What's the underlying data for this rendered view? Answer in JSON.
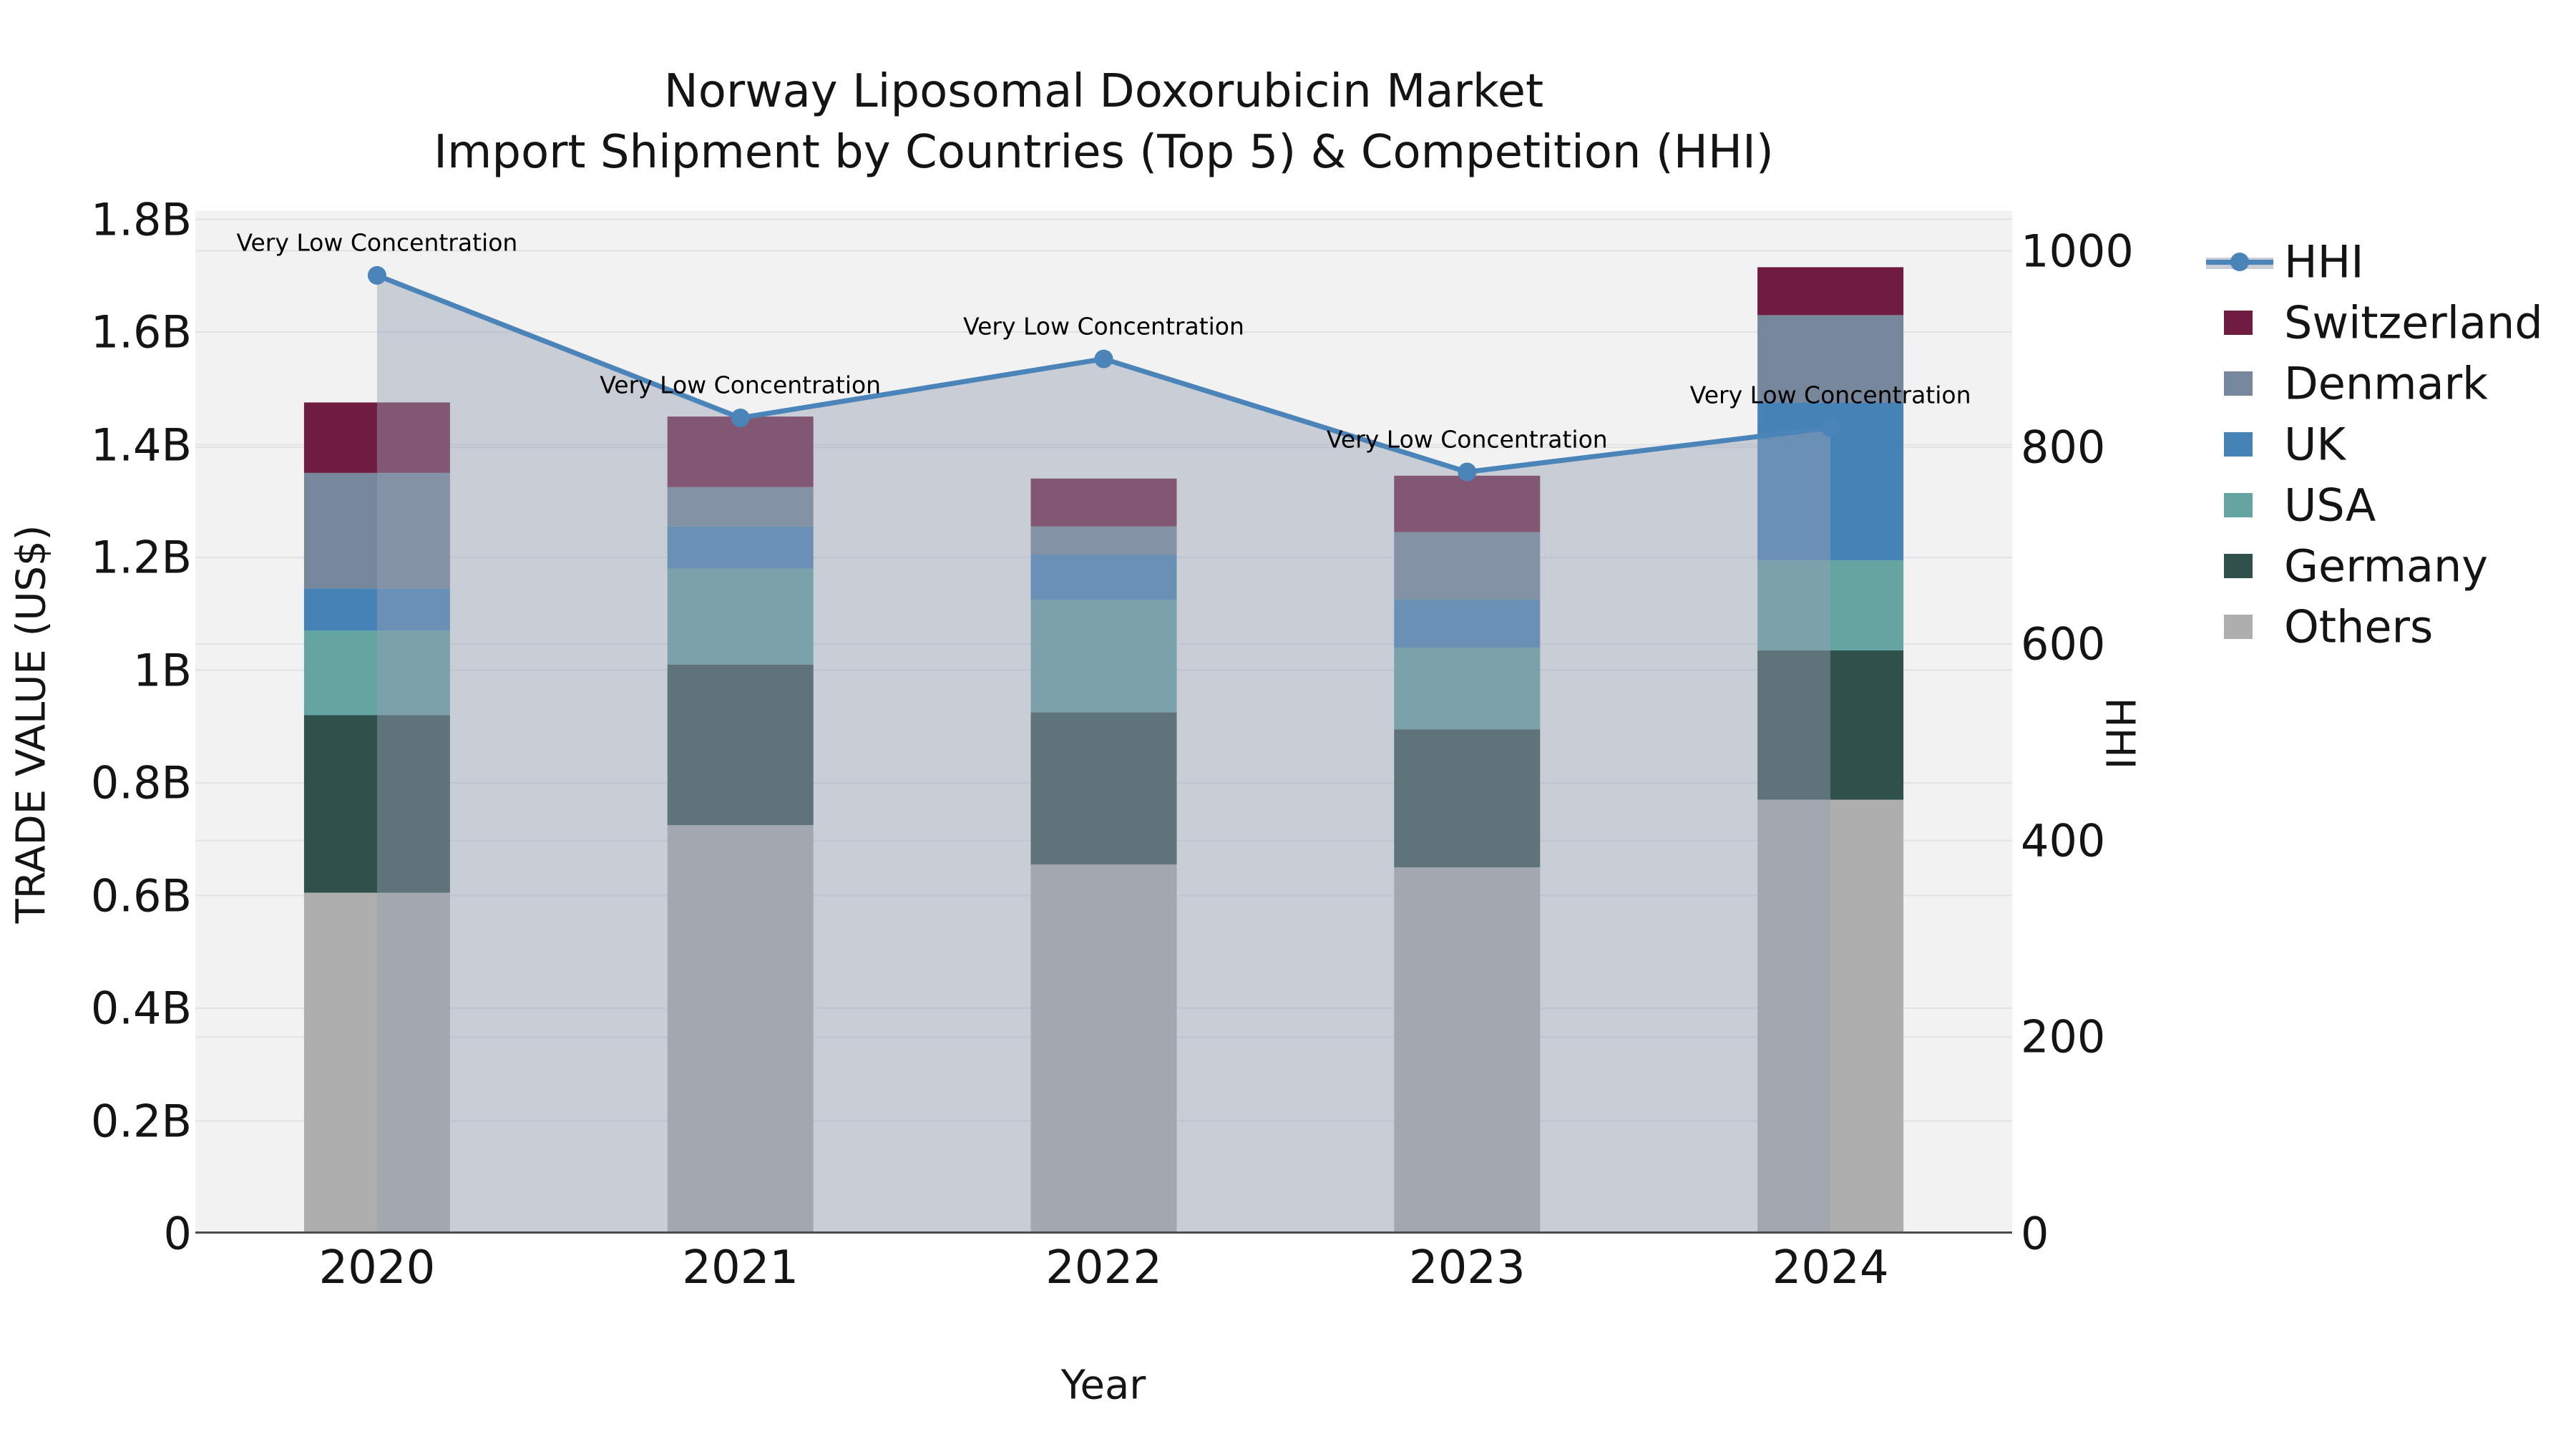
{
  "title": {
    "line1": "Norway Liposomal Doxorubicin Market",
    "line2": "Import Shipment by Countries (Top 5) & Competition (HHI)"
  },
  "axes": {
    "x_label": "Year",
    "y_left_label": "TRADE VALUE (US$)",
    "y_right_label": "HHI",
    "y_left_ticks": [
      "0",
      "0.2B",
      "0.4B",
      "0.6B",
      "0.8B",
      "1B",
      "1.2B",
      "1.4B",
      "1.6B",
      "1.8B"
    ],
    "y_right_ticks": [
      "0",
      "200",
      "400",
      "600",
      "800",
      "1000"
    ],
    "x_ticks": [
      "2020",
      "2021",
      "2022",
      "2023",
      "2024"
    ]
  },
  "chart_data": {
    "type": "bar",
    "subtype": "stacked-bars-with-line",
    "title": "Norway Liposomal Doxorubicin Market — Import Shipment by Countries (Top 5) & Competition (HHI)",
    "xlabel": "Year",
    "ylabel_left": "TRADE VALUE (US$)",
    "ylabel_right": "HHI",
    "ylim_left_billions": [
      0,
      1.8
    ],
    "ylim_right": [
      0,
      1000
    ],
    "grid": true,
    "legend_position": "right-outside",
    "categories": [
      "2020",
      "2021",
      "2022",
      "2023",
      "2024"
    ],
    "stacked_series_bottom_to_top": [
      {
        "name": "Others",
        "color": "#aeaeae",
        "values_billions": [
          0.605,
          0.725,
          0.655,
          0.65,
          0.77
        ]
      },
      {
        "name": "Germany",
        "color": "#30504c",
        "values_billions": [
          0.315,
          0.285,
          0.27,
          0.245,
          0.265
        ]
      },
      {
        "name": "USA",
        "color": "#64a5a2",
        "values_billions": [
          0.15,
          0.17,
          0.2,
          0.145,
          0.16
        ]
      },
      {
        "name": "UK",
        "color": "#4583b7",
        "values_billions": [
          0.075,
          0.075,
          0.08,
          0.085,
          0.28
        ]
      },
      {
        "name": "Denmark",
        "color": "#76879b",
        "values_billions": [
          0.205,
          0.07,
          0.05,
          0.12,
          0.155
        ]
      },
      {
        "name": "Switzerland",
        "color": "#701c40",
        "values_billions": [
          0.125,
          0.125,
          0.085,
          0.1,
          0.085
        ]
      }
    ],
    "bar_totals_billions": [
      1.475,
      1.45,
      1.34,
      1.345,
      1.715
    ],
    "line_series": {
      "name": "HHI",
      "values": [
        975,
        830,
        890,
        775,
        820
      ],
      "color": "#4a84b8",
      "area_fill_color": "#96a0b4",
      "area_fill_opacity": 0.45,
      "point_annotations": [
        "Very Low Concentration",
        "Very Low Concentration",
        "Very Low Concentration",
        "Very Low Concentration",
        "Very Low Concentration"
      ]
    }
  },
  "legend": {
    "items": [
      {
        "label": "HHI",
        "type": "line",
        "color": "#4a84b8"
      },
      {
        "label": "Switzerland",
        "type": "swatch",
        "color": "#701c40"
      },
      {
        "label": "Denmark",
        "type": "swatch",
        "color": "#76879b"
      },
      {
        "label": "UK",
        "type": "swatch",
        "color": "#4583b7"
      },
      {
        "label": "USA",
        "type": "swatch",
        "color": "#64a5a2"
      },
      {
        "label": "Germany",
        "type": "swatch",
        "color": "#30504c"
      },
      {
        "label": "Others",
        "type": "swatch",
        "color": "#aeaeae"
      }
    ]
  },
  "colors": {
    "plot_background": "#f2f2f3",
    "gridline": "#e2e2e4",
    "axis_line": "#4d4d4d",
    "text": "#141414"
  }
}
